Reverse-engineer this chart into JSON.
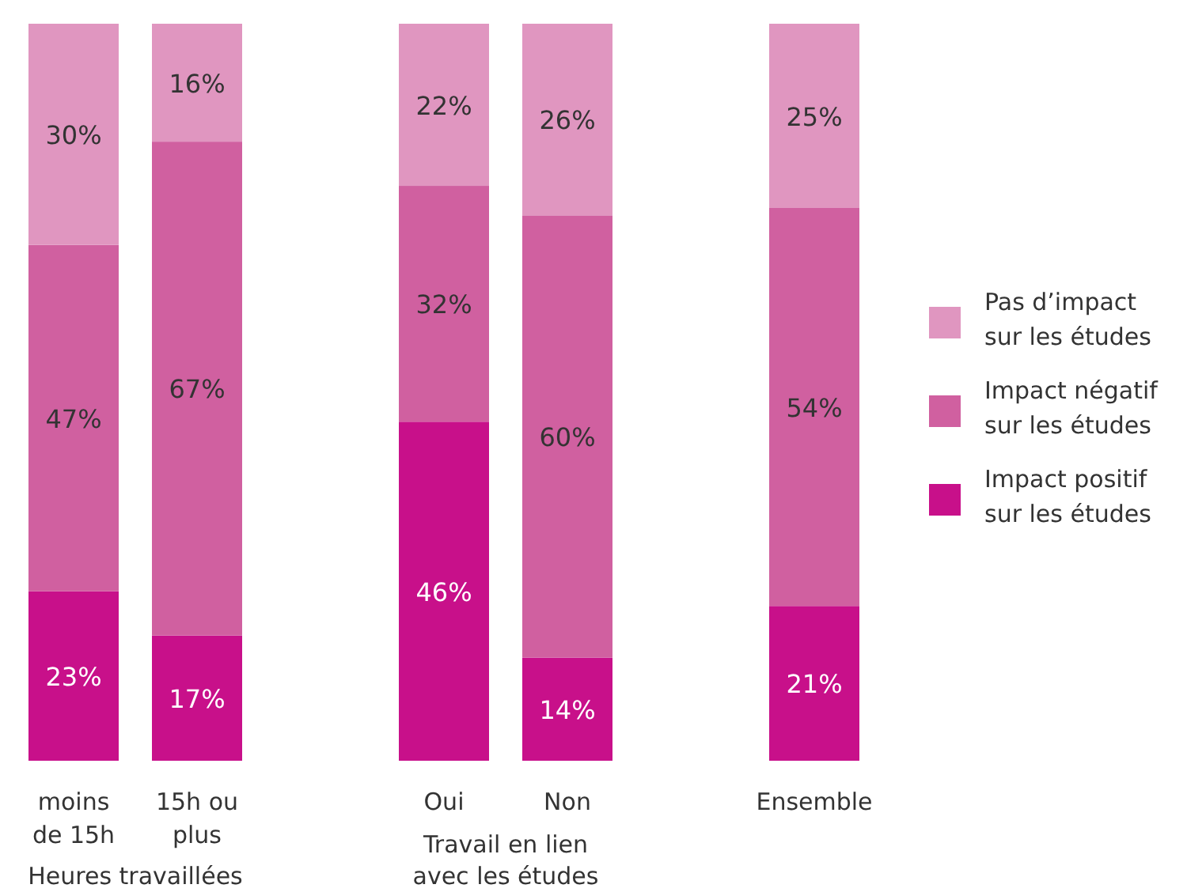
{
  "chart_data": {
    "type": "bar",
    "stacked": true,
    "legend": "right",
    "ylim": [
      0,
      100
    ],
    "categories": [
      "moins de 15h",
      "15h ou plus",
      null,
      "Oui",
      "Non",
      null,
      "Ensemble"
    ],
    "series": [
      {
        "name": "Impact positif sur les études",
        "color": "#c8108a",
        "values": [
          23,
          17,
          null,
          46,
          14,
          null,
          21
        ],
        "value_labels": [
          "23%",
          "17%",
          null,
          "46%",
          "14%",
          null,
          "21%"
        ]
      },
      {
        "name": "Impact négatif sur les études",
        "color": "#d060a0",
        "values": [
          47,
          67,
          null,
          32,
          60,
          null,
          54
        ],
        "value_labels": [
          "47%",
          "67%",
          null,
          "32%",
          "60%",
          null,
          "54%"
        ]
      },
      {
        "name": "Pas d’impact sur les études",
        "color": "#e096c0",
        "values": [
          30,
          16,
          null,
          22,
          26,
          null,
          25
        ],
        "value_labels": [
          "30%",
          "16%",
          null,
          "22%",
          "26%",
          null,
          "25%"
        ]
      }
    ],
    "annotations": [
      "Heures travaillées",
      "Travail en lien avec les études"
    ]
  }
}
